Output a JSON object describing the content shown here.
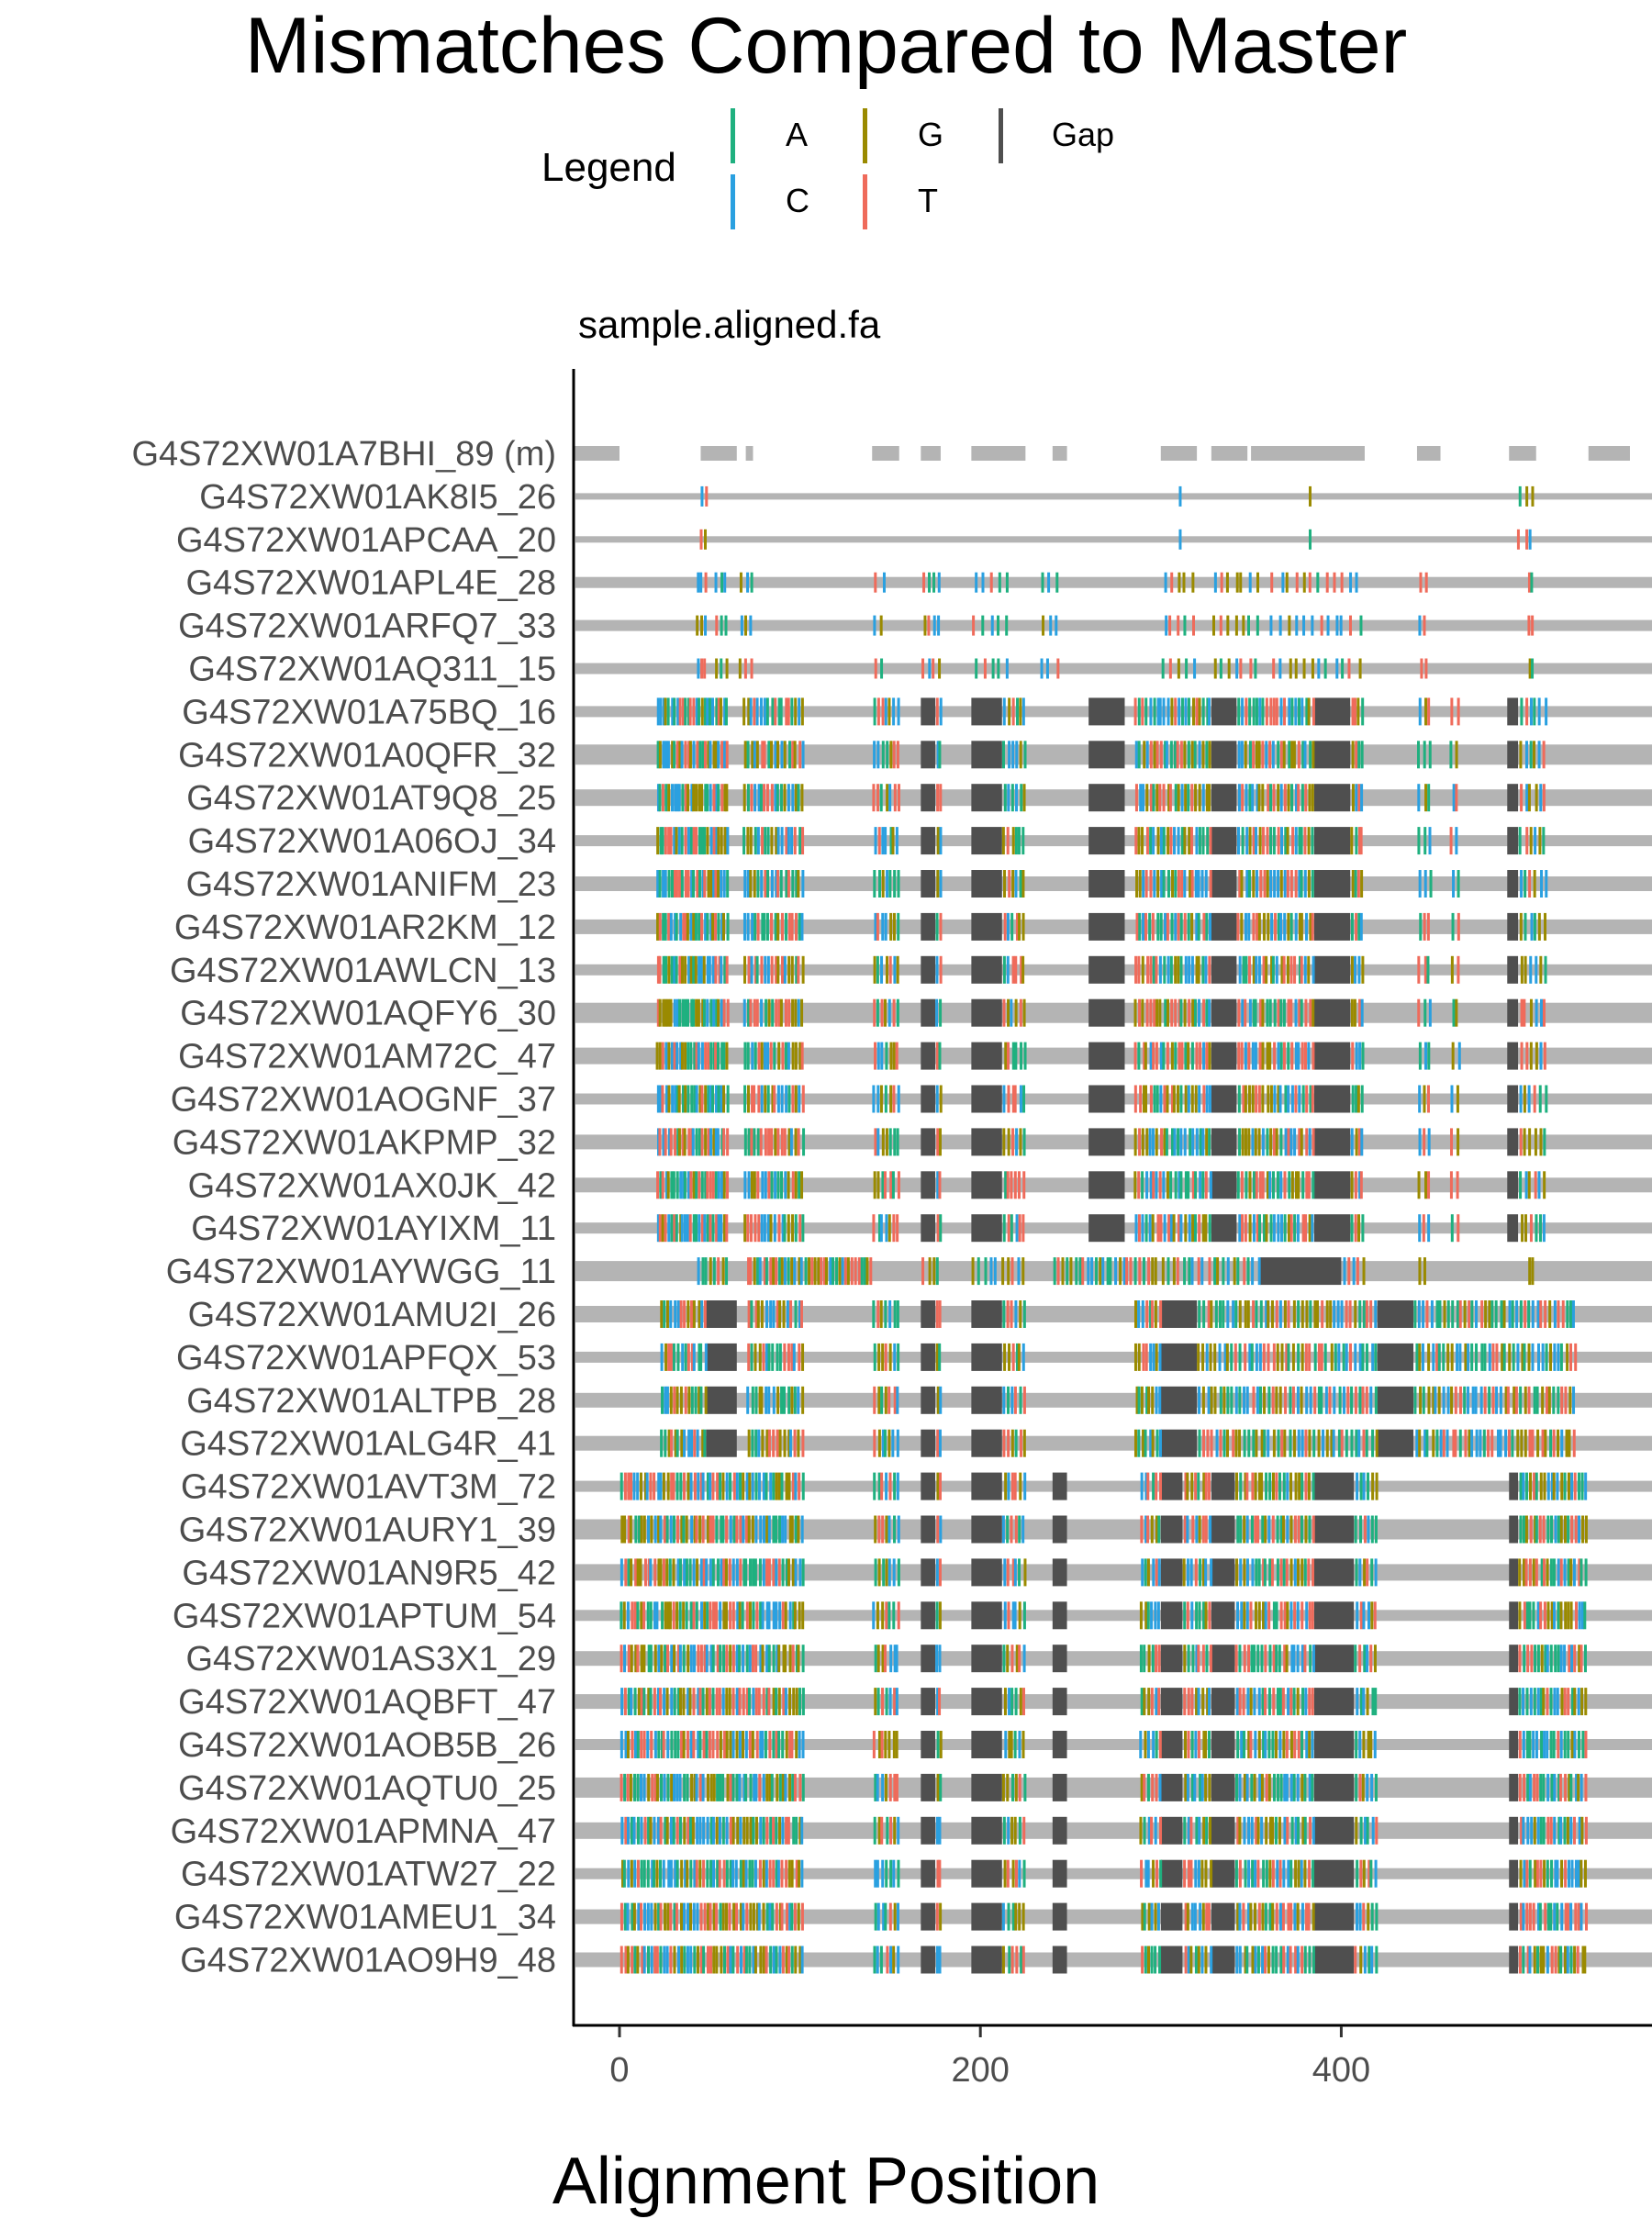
{
  "chart_data": {
    "type": "mismatch-alignment",
    "title": "Mismatches Compared to Master",
    "facet_label": "sample.aligned.fa",
    "xlabel": "Alignment Position",
    "xlim": [
      -60,
      560
    ],
    "x_ticks": [
      0,
      200,
      400
    ],
    "legend": {
      "title": "Legend",
      "position": "top",
      "entries": [
        {
          "label": "A",
          "color": "#1fb07f"
        },
        {
          "label": "C",
          "color": "#2aa0e0"
        },
        {
          "label": "G",
          "color": "#9a8a00"
        },
        {
          "label": "T",
          "color": "#ef6b5b"
        },
        {
          "label": "Gap",
          "color": "#4f4f4f"
        }
      ]
    },
    "colors": {
      "A": "#1fb07f",
      "C": "#2aa0e0",
      "G": "#9a8a00",
      "T": "#ef6b5b",
      "Gap": "#4f4f4f",
      "sequence_line": "#b4b4b4",
      "master_gap": "#b4b4b4"
    },
    "master": {
      "label": "G4S72XW01A7BHI_89 (m)",
      "segments": [
        [
          -25,
          0
        ],
        [
          45,
          65
        ],
        [
          70,
          74
        ],
        [
          140,
          155
        ],
        [
          167,
          178
        ],
        [
          195,
          225
        ],
        [
          240,
          248
        ],
        [
          300,
          320
        ],
        [
          328,
          348
        ],
        [
          350,
          413
        ],
        [
          442,
          455
        ],
        [
          493,
          508
        ],
        [
          537,
          560
        ]
      ]
    },
    "sequences": [
      {
        "label": "G4S72XW01AK8I5_26",
        "group": 1
      },
      {
        "label": "G4S72XW01APCAA_20",
        "group": 1
      },
      {
        "label": "G4S72XW01APL4E_28",
        "group": 2
      },
      {
        "label": "G4S72XW01ARFQ7_33",
        "group": 2
      },
      {
        "label": "G4S72XW01AQ311_15",
        "group": 2
      },
      {
        "label": "G4S72XW01A75BQ_16",
        "group": 3
      },
      {
        "label": "G4S72XW01A0QFR_32",
        "group": 3
      },
      {
        "label": "G4S72XW01AT9Q8_25",
        "group": 3
      },
      {
        "label": "G4S72XW01A06OJ_34",
        "group": 3
      },
      {
        "label": "G4S72XW01ANIFM_23",
        "group": 3
      },
      {
        "label": "G4S72XW01AR2KM_12",
        "group": 3
      },
      {
        "label": "G4S72XW01AWLCN_13",
        "group": 3
      },
      {
        "label": "G4S72XW01AQFY6_30",
        "group": 3
      },
      {
        "label": "G4S72XW01AM72C_47",
        "group": 3
      },
      {
        "label": "G4S72XW01AOGNF_37",
        "group": 3
      },
      {
        "label": "G4S72XW01AKPMP_32",
        "group": 3
      },
      {
        "label": "G4S72XW01AX0JK_42",
        "group": 3
      },
      {
        "label": "G4S72XW01AYIXM_11",
        "group": 3
      },
      {
        "label": "G4S72XW01AYWGG_11",
        "group": 4
      },
      {
        "label": "G4S72XW01AMU2I_26",
        "group": 5
      },
      {
        "label": "G4S72XW01APFQX_53",
        "group": 5
      },
      {
        "label": "G4S72XW01ALTPB_28",
        "group": 5
      },
      {
        "label": "G4S72XW01ALG4R_41",
        "group": 5
      },
      {
        "label": "G4S72XW01AVT3M_72",
        "group": 6
      },
      {
        "label": "G4S72XW01AURY1_39",
        "group": 6
      },
      {
        "label": "G4S72XW01AN9R5_42",
        "group": 6
      },
      {
        "label": "G4S72XW01APTUM_54",
        "group": 6
      },
      {
        "label": "G4S72XW01AS3X1_29",
        "group": 6
      },
      {
        "label": "G4S72XW01AQBFT_47",
        "group": 6
      },
      {
        "label": "G4S72XW01AOB5B_26",
        "group": 6
      },
      {
        "label": "G4S72XW01AQTU0_25",
        "group": 6
      },
      {
        "label": "G4S72XW01APMNA_47",
        "group": 6
      },
      {
        "label": "G4S72XW01ATW27_22",
        "group": 6
      },
      {
        "label": "G4S72XW01AMEU1_34",
        "group": 6
      },
      {
        "label": "G4S72XW01AO9H9_48",
        "group": 6
      }
    ],
    "group_patterns": {
      "1": {
        "gaps": [],
        "mismatch_regions": [
          [
            44,
            49,
            2
          ],
          [
            381,
            383,
            1
          ],
          [
            497,
            507,
            3
          ]
        ],
        "extra_mismatches": [
          {
            "x": 310,
            "base": "C"
          }
        ]
      },
      "2": {
        "gaps": [],
        "mismatch_regions": [
          [
            42,
            48,
            3
          ],
          [
            52,
            60,
            3
          ],
          [
            66,
            74,
            3
          ],
          [
            140,
            148,
            2
          ],
          [
            167,
            178,
            4
          ],
          [
            195,
            218,
            5
          ],
          [
            232,
            245,
            3
          ],
          [
            300,
            320,
            5
          ],
          [
            328,
            355,
            7
          ],
          [
            360,
            412,
            12
          ],
          [
            442,
            448,
            2
          ],
          [
            503,
            506,
            2
          ]
        ],
        "extra_mismatches": []
      },
      "3": {
        "gaps": [
          [
            167,
            175
          ],
          [
            195,
            212
          ],
          [
            260,
            280
          ],
          [
            328,
            342
          ],
          [
            385,
            405
          ],
          [
            492,
            498
          ]
        ],
        "mismatch_regions": [
          [
            20,
            60,
            26
          ],
          [
            68,
            102,
            18
          ],
          [
            140,
            155,
            7
          ],
          [
            175,
            178,
            2
          ],
          [
            212,
            225,
            6
          ],
          [
            285,
            328,
            22
          ],
          [
            342,
            385,
            22
          ],
          [
            405,
            412,
            4
          ],
          [
            442,
            450,
            3
          ],
          [
            460,
            466,
            2
          ],
          [
            498,
            514,
            6
          ]
        ],
        "extra_mismatches": []
      },
      "4": {
        "gaps": [
          [
            355,
            400
          ]
        ],
        "mismatch_regions": [
          [
            42,
            60,
            8
          ],
          [
            70,
            140,
            40
          ],
          [
            167,
            178,
            4
          ],
          [
            195,
            225,
            10
          ],
          [
            240,
            298,
            26
          ],
          [
            300,
            355,
            20
          ],
          [
            400,
            413,
            5
          ],
          [
            442,
            447,
            2
          ],
          [
            503,
            506,
            2
          ]
        ],
        "extra_mismatches": []
      },
      "5": {
        "gaps": [
          [
            48,
            65
          ],
          [
            167,
            175
          ],
          [
            195,
            212
          ],
          [
            300,
            320
          ],
          [
            420,
            440
          ]
        ],
        "mismatch_regions": [
          [
            22,
            48,
            14
          ],
          [
            70,
            102,
            16
          ],
          [
            140,
            155,
            7
          ],
          [
            175,
            178,
            2
          ],
          [
            212,
            225,
            6
          ],
          [
            285,
            300,
            8
          ],
          [
            320,
            420,
            44
          ],
          [
            440,
            530,
            40
          ]
        ],
        "extra_mismatches": []
      },
      "6": {
        "gaps": [
          [
            167,
            175
          ],
          [
            195,
            212
          ],
          [
            240,
            248
          ],
          [
            300,
            312
          ],
          [
            328,
            341
          ],
          [
            385,
            407
          ],
          [
            493,
            498
          ]
        ],
        "mismatch_regions": [
          [
            0,
            102,
            56
          ],
          [
            140,
            155,
            7
          ],
          [
            175,
            178,
            2
          ],
          [
            212,
            225,
            6
          ],
          [
            288,
            300,
            6
          ],
          [
            312,
            328,
            8
          ],
          [
            341,
            385,
            22
          ],
          [
            407,
            420,
            6
          ],
          [
            498,
            536,
            20
          ]
        ],
        "extra_mismatches": []
      }
    }
  }
}
